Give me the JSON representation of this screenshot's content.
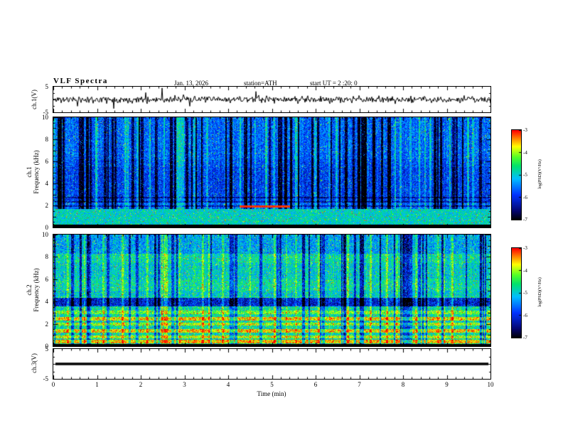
{
  "header": {
    "title": "VLF  Spectra",
    "date": "Jan. 13, 2026",
    "station": "station=ATH",
    "start_ut": "start UT =  2 :20: 0"
  },
  "xaxis": {
    "label": "Time (min)",
    "min": 0,
    "max": 10,
    "major_ticks": [
      0,
      1,
      2,
      3,
      4,
      5,
      6,
      7,
      8,
      9,
      10
    ],
    "minor_step": 0.2
  },
  "colorbar": {
    "label": "log(PSD)(V²/Hz)",
    "min": -7,
    "max": -3,
    "ticks": [
      -3,
      -4,
      -5,
      -6,
      -7
    ]
  },
  "chart_data": [
    {
      "type": "line",
      "panel": "ch1_waveform",
      "ylabel": "ch.1(V)",
      "ylim": [
        -5,
        5
      ],
      "ytick_labels": [
        5,
        -5
      ],
      "description": "Broadband noise waveform, mostly within ±1 V, with sparse impulsive spikes reaching about ±4 V over the 10 minute record.",
      "render": {
        "seed": 11,
        "amp": 1.3,
        "spike_prob": 0.012
      }
    },
    {
      "type": "heatmap",
      "panel": "ch1_spectrogram",
      "ylabel_lines": [
        "ch.1",
        "Frequency (kHz)"
      ],
      "ylim": [
        0,
        10
      ],
      "yticks": [
        0,
        2,
        4,
        6,
        8,
        10
      ],
      "zlim": [
        -7,
        -3
      ],
      "description": "Spectrogram dominated by blue background (~-6 dec) with dense black vertical dropout streaks above ~1.7 kHz, a bright cyan band 0.3–1.7 kHz, a black band below 0.3 kHz, darker horizontal lines near 2–2.8 kHz, and a red high-power segment near 1.9 kHz between 4.25 and 5.4 min.",
      "render": {
        "seed": 23,
        "base": 0.34,
        "noise": 0.26,
        "fleck_prob": 0.03,
        "fleck_amp": 0.35,
        "black_below": 0.32,
        "streak_above": 1.7,
        "dark_prob": 0.09,
        "bright_prob": 0.06,
        "bands": [
          [
            0.32,
            1.7,
            0.18
          ],
          [
            2.3,
            5.5,
            -0.06
          ],
          [
            1.9,
            2.05,
            -0.16
          ],
          [
            2.3,
            2.42,
            -0.14
          ],
          [
            2.65,
            2.78,
            -0.14
          ],
          [
            5.5,
            6.2,
            -0.03
          ]
        ],
        "red_line": {
          "f": [
            1.82,
            2.0
          ],
          "x": [
            4.25,
            5.4
          ]
        }
      }
    },
    {
      "type": "heatmap",
      "panel": "ch2_spectrogram",
      "ylabel_lines": [
        "ch.2",
        "Frequency (kHz)"
      ],
      "ylim": [
        0,
        10
      ],
      "yticks": [
        0,
        2,
        4,
        6,
        8,
        10
      ],
      "zlim": [
        -7,
        -3
      ],
      "description": "Spectrogram with green/cyan speckled background (~-5 dec), strong yellow-orange horizontal bands below ~3.2 kHz, a blue low-power band near 3.6–4.3 kHz, slightly bluer region above 8.3 kHz, black vertical dropout streaks through the full height, and a thin black band at the very bottom.",
      "render": {
        "seed": 37,
        "base": 0.55,
        "noise": 0.3,
        "fleck_prob": 0.04,
        "fleck_amp": 0.3,
        "black_below": 0.2,
        "streak_above": 0.25,
        "dark_prob": 0.09,
        "bright_prob": 0.05,
        "bands": [
          [
            0.3,
            0.6,
            0.3
          ],
          [
            0.75,
            1.0,
            0.22
          ],
          [
            1.25,
            1.55,
            0.28
          ],
          [
            1.9,
            2.15,
            0.2
          ],
          [
            2.35,
            2.65,
            0.28
          ],
          [
            2.9,
            3.2,
            0.15
          ],
          [
            3.6,
            4.35,
            -0.33
          ],
          [
            4.5,
            5.0,
            -0.05
          ],
          [
            6.0,
            7.5,
            -0.04
          ],
          [
            8.3,
            10.0,
            -0.12
          ]
        ],
        "red_line": null
      }
    },
    {
      "type": "line",
      "panel": "ch3_flat",
      "ylabel": "ch.3(V)",
      "ylim": [
        -5,
        5
      ],
      "ytick_labels": [
        5,
        -5
      ],
      "flat_value": 0,
      "description": "Channel 3 is flat: a thick black horizontal trace at 0 V for the whole record.",
      "render": {
        "seed": 5
      }
    }
  ]
}
